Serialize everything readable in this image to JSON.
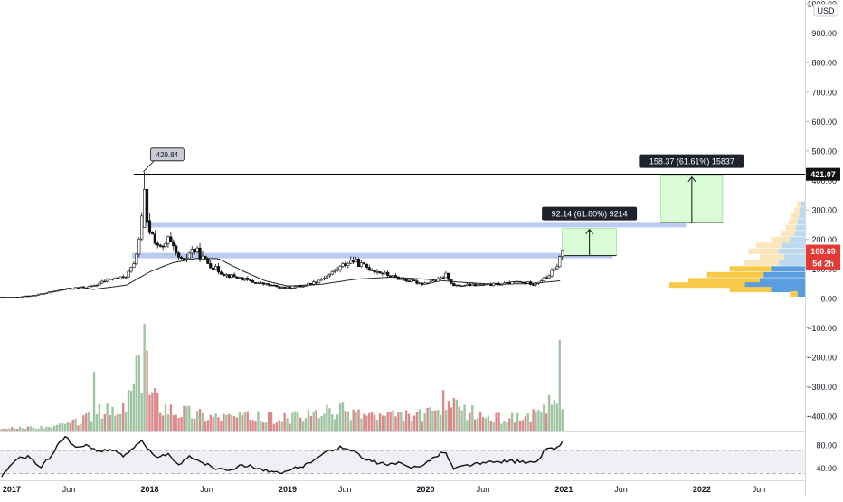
{
  "currency": "USD",
  "colors": {
    "up": "#26a69a",
    "down": "#ef5350",
    "vol_up": "#9fc4a1",
    "vol_down": "#d98a8a",
    "zone": "#b2c4ee",
    "target_fill": "#d9fcd7",
    "target_stroke": "#6fd36a",
    "sma": "#222222",
    "last_price_bg": "#e53935",
    "resistance_bg": "#111111",
    "label_bg": "#1e222d",
    "rsi_line": "#111111",
    "rsi_band": "#eef0f3"
  },
  "chart_data": {
    "type": "candlestick",
    "price_axis": {
      "ylim": [
        -430,
        1000
      ],
      "ticks": [
        {
          "v": 1000,
          "label": "1000.00"
        },
        {
          "v": 900,
          "label": "900.00"
        },
        {
          "v": 800,
          "label": "800.00"
        },
        {
          "v": 700,
          "label": "700.00"
        },
        {
          "v": 600,
          "label": "600.00"
        },
        {
          "v": 500,
          "label": "500.00"
        },
        {
          "v": 400,
          "label": "400.00"
        },
        {
          "v": 300,
          "label": "300.00"
        },
        {
          "v": 200,
          "label": "200.00"
        },
        {
          "v": 100,
          "label": "100.00"
        },
        {
          "v": 0,
          "label": "0.00"
        },
        {
          "v": -100,
          "label": "−100.00"
        },
        {
          "v": -200,
          "label": "−200.00"
        },
        {
          "v": -300,
          "label": "−300.00"
        },
        {
          "v": -400,
          "label": "−400.00"
        }
      ]
    },
    "time_axis": {
      "start": "2016-12-01",
      "end": "2022-10-01",
      "ticks": [
        {
          "date": "2017-01-01",
          "label": "2017",
          "bold": true
        },
        {
          "date": "2017-06-01",
          "label": "Jun",
          "bold": false
        },
        {
          "date": "2018-01-01",
          "label": "2018",
          "bold": true
        },
        {
          "date": "2018-06-01",
          "label": "Jun",
          "bold": false
        },
        {
          "date": "2019-01-01",
          "label": "2019",
          "bold": true
        },
        {
          "date": "2019-06-01",
          "label": "Jun",
          "bold": false
        },
        {
          "date": "2020-01-01",
          "label": "2020",
          "bold": true
        },
        {
          "date": "2020-06-01",
          "label": "Jun",
          "bold": false
        },
        {
          "date": "2021-01-01",
          "label": "2021",
          "bold": true
        },
        {
          "date": "2021-06-01",
          "label": "Jun",
          "bold": false
        },
        {
          "date": "2022-01-01",
          "label": "2022",
          "bold": true
        },
        {
          "date": "2022-06-01",
          "label": "Jun",
          "bold": false
        }
      ]
    },
    "price_keypoints": [
      [
        "2016-12-01",
        3
      ],
      [
        "2017-01-15",
        3
      ],
      [
        "2017-02-20",
        10
      ],
      [
        "2017-03-20",
        15
      ],
      [
        "2017-05-15",
        30
      ],
      [
        "2017-06-15",
        35
      ],
      [
        "2017-08-01",
        40
      ],
      [
        "2017-09-15",
        65
      ],
      [
        "2017-10-25",
        70
      ],
      [
        "2017-11-20",
        110
      ],
      [
        "2017-12-05",
        210
      ],
      [
        "2017-12-15",
        300
      ],
      [
        "2017-12-25",
        250
      ],
      [
        "2018-01-10",
        210
      ],
      [
        "2018-02-01",
        160
      ],
      [
        "2018-02-20",
        200
      ],
      [
        "2018-03-10",
        150
      ],
      [
        "2018-04-01",
        120
      ],
      [
        "2018-04-20",
        165
      ],
      [
        "2018-05-05",
        160
      ],
      [
        "2018-05-25",
        130
      ],
      [
        "2018-06-25",
        100
      ],
      [
        "2018-07-20",
        80
      ],
      [
        "2018-08-25",
        70
      ],
      [
        "2018-10-01",
        55
      ],
      [
        "2018-11-15",
        45
      ],
      [
        "2018-12-20",
        35
      ],
      [
        "2019-02-01",
        40
      ],
      [
        "2019-03-15",
        55
      ],
      [
        "2019-04-20",
        80
      ],
      [
        "2019-05-25",
        110
      ],
      [
        "2019-06-20",
        130
      ],
      [
        "2019-07-20",
        110
      ],
      [
        "2019-08-20",
        95
      ],
      [
        "2019-10-01",
        75
      ],
      [
        "2019-11-15",
        60
      ],
      [
        "2019-12-25",
        50
      ],
      [
        "2020-02-01",
        60
      ],
      [
        "2020-02-25",
        80
      ],
      [
        "2020-03-15",
        42
      ],
      [
        "2020-04-20",
        45
      ],
      [
        "2020-06-01",
        45
      ],
      [
        "2020-08-01",
        50
      ],
      [
        "2020-09-01",
        55
      ],
      [
        "2020-10-15",
        50
      ],
      [
        "2020-11-15",
        70
      ],
      [
        "2020-12-10",
        100
      ],
      [
        "2020-12-28",
        160
      ]
    ],
    "sma_keypoints": [
      [
        "2017-08-01",
        30
      ],
      [
        "2017-11-01",
        45
      ],
      [
        "2018-01-01",
        90
      ],
      [
        "2018-03-01",
        120
      ],
      [
        "2018-05-01",
        135
      ],
      [
        "2018-07-01",
        135
      ],
      [
        "2018-09-01",
        95
      ],
      [
        "2018-11-01",
        60
      ],
      [
        "2019-01-01",
        42
      ],
      [
        "2019-04-01",
        48
      ],
      [
        "2019-07-01",
        65
      ],
      [
        "2019-10-01",
        72
      ],
      [
        "2020-01-01",
        65
      ],
      [
        "2020-04-01",
        55
      ],
      [
        "2020-07-01",
        48
      ],
      [
        "2020-10-01",
        50
      ],
      [
        "2020-12-28",
        60
      ]
    ],
    "volume_keypoints": [
      [
        "2016-12-01",
        0.02
      ],
      [
        "2017-05-01",
        0.04
      ],
      [
        "2017-07-01",
        0.1
      ],
      [
        "2017-09-01",
        0.2
      ],
      [
        "2017-10-15",
        0.15
      ],
      [
        "2017-11-20",
        0.45
      ],
      [
        "2017-12-10",
        0.55
      ],
      [
        "2018-01-05",
        0.35
      ],
      [
        "2018-03-01",
        0.22
      ],
      [
        "2018-06-01",
        0.15
      ],
      [
        "2019-01-01",
        0.12
      ],
      [
        "2019-06-01",
        0.2
      ],
      [
        "2019-09-01",
        0.14
      ],
      [
        "2020-01-01",
        0.15
      ],
      [
        "2020-03-15",
        0.22
      ],
      [
        "2020-07-01",
        0.12
      ],
      [
        "2020-11-01",
        0.15
      ],
      [
        "2020-12-28",
        0.4
      ]
    ],
    "volume_spikes": [
      [
        "2017-12-15",
        1.0
      ],
      [
        "2017-12-22",
        0.75
      ],
      [
        "2017-11-25",
        0.7
      ],
      [
        "2017-08-10",
        0.55
      ],
      [
        "2020-12-20",
        0.85
      ],
      [
        "2020-02-20",
        0.38
      ]
    ],
    "rsi_keypoints": [
      [
        "2016-12-01",
        25
      ],
      [
        "2017-01-15",
        55
      ],
      [
        "2017-02-15",
        60
      ],
      [
        "2017-03-15",
        40
      ],
      [
        "2017-04-15",
        60
      ],
      [
        "2017-05-10",
        88
      ],
      [
        "2017-05-25",
        92
      ],
      [
        "2017-06-20",
        75
      ],
      [
        "2017-07-20",
        78
      ],
      [
        "2017-08-15",
        70
      ],
      [
        "2017-09-20",
        72
      ],
      [
        "2017-10-25",
        60
      ],
      [
        "2017-11-25",
        80
      ],
      [
        "2017-12-10",
        90
      ],
      [
        "2017-12-25",
        75
      ],
      [
        "2018-01-20",
        55
      ],
      [
        "2018-02-15",
        65
      ],
      [
        "2018-03-15",
        45
      ],
      [
        "2018-04-20",
        60
      ],
      [
        "2018-05-20",
        50
      ],
      [
        "2018-06-20",
        40
      ],
      [
        "2018-08-01",
        38
      ],
      [
        "2018-09-15",
        45
      ],
      [
        "2018-10-15",
        40
      ],
      [
        "2018-11-20",
        32
      ],
      [
        "2018-12-20",
        30
      ],
      [
        "2019-01-20",
        40
      ],
      [
        "2019-02-20",
        45
      ],
      [
        "2019-03-20",
        60
      ],
      [
        "2019-04-25",
        70
      ],
      [
        "2019-05-20",
        75
      ],
      [
        "2019-06-20",
        72
      ],
      [
        "2019-07-20",
        55
      ],
      [
        "2019-08-20",
        50
      ],
      [
        "2019-09-20",
        45
      ],
      [
        "2019-10-20",
        48
      ],
      [
        "2019-11-20",
        40
      ],
      [
        "2019-12-20",
        45
      ],
      [
        "2020-01-20",
        55
      ],
      [
        "2020-02-20",
        70
      ],
      [
        "2020-03-15",
        38
      ],
      [
        "2020-04-20",
        45
      ],
      [
        "2020-06-01",
        48
      ],
      [
        "2020-08-01",
        52
      ],
      [
        "2020-09-15",
        50
      ],
      [
        "2020-10-20",
        48
      ],
      [
        "2020-11-15",
        75
      ],
      [
        "2020-12-10",
        72
      ],
      [
        "2020-12-28",
        86
      ]
    ],
    "rsi_axis": {
      "ylim": [
        20,
        100
      ],
      "ticks": [
        {
          "v": 80,
          "label": "80.00"
        },
        {
          "v": 40,
          "label": "40.00"
        }
      ],
      "band": [
        30,
        70
      ]
    },
    "horizontal_line": {
      "value": 421.07,
      "start": "2017-11-20",
      "label": "421.07"
    },
    "zones": [
      {
        "value": 250,
        "start": "2017-12-20",
        "end": "2021-11-20"
      },
      {
        "value": 145,
        "start": "2017-11-15",
        "end": "2021-05-10"
      }
    ],
    "projections": [
      {
        "start": "2020-12-28",
        "end": "2021-05-20",
        "low": 145,
        "high": 237,
        "label": "92.14 (61.80%) 9214"
      },
      {
        "start": "2021-09-15",
        "end": "2022-02-25",
        "low": 257,
        "high": 415,
        "label": "158.37 (61.61%) 15837"
      }
    ],
    "peak_callout": {
      "date": "2017-12-15",
      "value": 429.84,
      "label": "429.84"
    },
    "last_price": {
      "value": 160.69,
      "label": "160.69",
      "countdown": "5d 2h"
    },
    "volume_profile": [
      {
        "p": 320,
        "buy": 0.05,
        "sell": 0.06
      },
      {
        "p": 300,
        "buy": 0.06,
        "sell": 0.08
      },
      {
        "p": 280,
        "buy": 0.08,
        "sell": 0.1
      },
      {
        "p": 260,
        "buy": 0.1,
        "sell": 0.12
      },
      {
        "p": 240,
        "buy": 0.12,
        "sell": 0.14
      },
      {
        "p": 220,
        "buy": 0.14,
        "sell": 0.18
      },
      {
        "p": 200,
        "buy": 0.2,
        "sell": 0.25
      },
      {
        "p": 180,
        "buy": 0.3,
        "sell": 0.35
      },
      {
        "p": 160,
        "buy": 0.35,
        "sell": 0.4
      },
      {
        "p": 140,
        "buy": 0.28,
        "sell": 0.32
      },
      {
        "p": 120,
        "buy": 0.35,
        "sell": 0.45
      },
      {
        "p": 100,
        "buy": 0.45,
        "sell": 0.55
      },
      {
        "p": 80,
        "buy": 0.55,
        "sell": 0.75
      },
      {
        "p": 60,
        "buy": 0.6,
        "sell": 0.95
      },
      {
        "p": 45,
        "buy": 0.8,
        "sell": 1.0
      },
      {
        "p": 30,
        "buy": 0.45,
        "sell": 0.55
      },
      {
        "p": 15,
        "buy": 0.1,
        "sell": 0.1
      }
    ]
  }
}
